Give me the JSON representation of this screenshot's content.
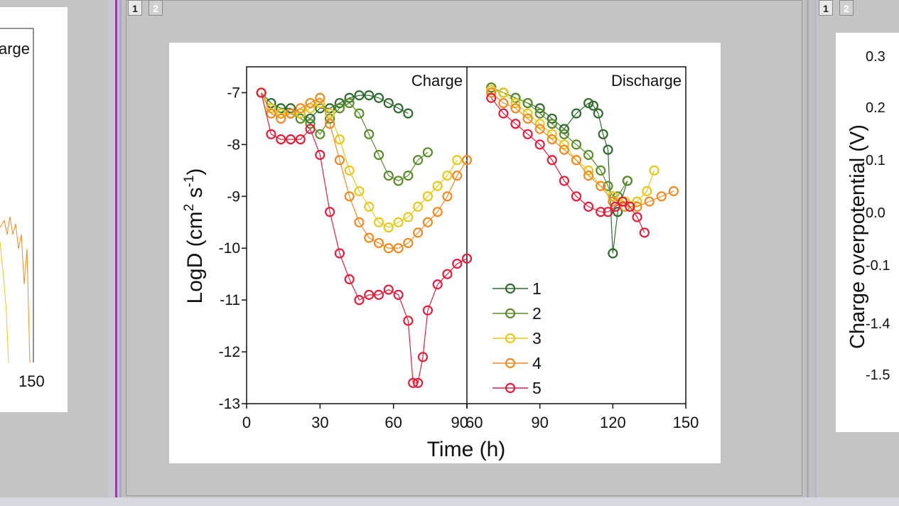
{
  "tabs": {
    "first": "1",
    "second": "2"
  },
  "left_window": {
    "legend_fragment": "arge",
    "tick_label": "150"
  },
  "right_window": {
    "ylabel": "Charge overpotential (V)",
    "ticks": [
      "0.3",
      "0.2",
      "0.1",
      "0.0",
      "-0.1",
      "-1.4",
      "-1.5"
    ]
  },
  "colors": {
    "s1": "#2e6b2e",
    "s2": "#5a8c2a",
    "s3": "#e8c81c",
    "s4": "#f08a24",
    "s5": "#e0203c"
  },
  "chart_data": [
    {
      "type": "scatter",
      "panel": "charge",
      "title": "Charge",
      "xlabel": "Time (h)",
      "ylabel": "LogD (cm2 s-1)",
      "xlim": [
        0,
        90
      ],
      "ylim": [
        -13,
        -6.5
      ],
      "xticks": [
        "0",
        "30",
        "60",
        "90"
      ],
      "yticks": [
        "-7",
        "-8",
        "-9",
        "-10",
        "-11",
        "-12",
        "-13"
      ],
      "series": [
        {
          "name": "1",
          "x": [
            6,
            10,
            14,
            18,
            22,
            26,
            30,
            34,
            38,
            42,
            46,
            50,
            54,
            58,
            62,
            66
          ],
          "y": [
            -7.0,
            -7.2,
            -7.3,
            -7.3,
            -7.4,
            -7.5,
            -7.3,
            -7.3,
            -7.2,
            -7.1,
            -7.05,
            -7.05,
            -7.1,
            -7.2,
            -7.3,
            -7.4
          ]
        },
        {
          "name": "2",
          "x": [
            6,
            10,
            14,
            18,
            22,
            26,
            30,
            34,
            38,
            42,
            46,
            50,
            54,
            58,
            62,
            66,
            70,
            74
          ],
          "y": [
            -7.0,
            -7.3,
            -7.4,
            -7.4,
            -7.5,
            -7.6,
            -7.8,
            -7.5,
            -7.3,
            -7.2,
            -7.4,
            -7.8,
            -8.2,
            -8.6,
            -8.7,
            -8.6,
            -8.3,
            -8.15
          ]
        },
        {
          "name": "3",
          "x": [
            6,
            10,
            14,
            18,
            22,
            26,
            30,
            34,
            38,
            42,
            46,
            50,
            54,
            58,
            62,
            66,
            70,
            74,
            78,
            82,
            86
          ],
          "y": [
            -7.0,
            -7.3,
            -7.4,
            -7.4,
            -7.4,
            -7.3,
            -7.2,
            -7.4,
            -7.9,
            -8.5,
            -8.9,
            -9.2,
            -9.5,
            -9.6,
            -9.5,
            -9.4,
            -9.2,
            -9.0,
            -8.8,
            -8.6,
            -8.3
          ]
        },
        {
          "name": "4",
          "x": [
            6,
            10,
            14,
            18,
            22,
            26,
            30,
            34,
            38,
            42,
            46,
            50,
            54,
            58,
            62,
            66,
            70,
            74,
            78,
            82,
            86,
            90
          ],
          "y": [
            -7.0,
            -7.4,
            -7.5,
            -7.4,
            -7.3,
            -7.2,
            -7.1,
            -7.6,
            -8.3,
            -9.0,
            -9.5,
            -9.8,
            -9.9,
            -10.0,
            -10.0,
            -9.9,
            -9.7,
            -9.5,
            -9.3,
            -9.0,
            -8.6,
            -8.3
          ]
        },
        {
          "name": "5",
          "x": [
            6,
            10,
            14,
            18,
            22,
            26,
            30,
            34,
            38,
            42,
            46,
            50,
            54,
            58,
            62,
            66,
            68,
            70,
            72,
            74,
            78,
            82,
            86,
            90
          ],
          "y": [
            -7.0,
            -7.8,
            -7.9,
            -7.9,
            -7.9,
            -7.7,
            -8.2,
            -9.3,
            -10.1,
            -10.6,
            -11.0,
            -10.9,
            -10.9,
            -10.8,
            -10.9,
            -11.4,
            -12.6,
            -12.6,
            -12.1,
            -11.2,
            -10.7,
            -10.5,
            -10.3,
            -10.2
          ]
        }
      ]
    },
    {
      "type": "scatter",
      "panel": "discharge",
      "title": "Discharge",
      "xlabel": "Time (h)",
      "xlim": [
        60,
        150
      ],
      "ylim": [
        -13,
        -6.5
      ],
      "xticks": [
        "60",
        "90",
        "120",
        "150"
      ],
      "series": [
        {
          "name": "1",
          "x": [
            70,
            75,
            80,
            85,
            90,
            95,
            100,
            105,
            110,
            112,
            114,
            116,
            118,
            120,
            122,
            126
          ],
          "y": [
            -6.9,
            -7.0,
            -7.1,
            -7.2,
            -7.3,
            -7.5,
            -7.7,
            -7.4,
            -7.2,
            -7.25,
            -7.4,
            -7.8,
            -8.1,
            -10.1,
            -9.3,
            -8.7
          ]
        },
        {
          "name": "2",
          "x": [
            70,
            75,
            80,
            85,
            90,
            95,
            100,
            105,
            110,
            115,
            118,
            120,
            122,
            126
          ],
          "y": [
            -6.9,
            -7.0,
            -7.1,
            -7.2,
            -7.4,
            -7.6,
            -7.8,
            -8.0,
            -8.2,
            -8.5,
            -8.8,
            -9.0,
            -9.0,
            -8.7
          ]
        },
        {
          "name": "3",
          "x": [
            70,
            75,
            80,
            85,
            90,
            95,
            100,
            105,
            110,
            115,
            120,
            125,
            130,
            134,
            137
          ],
          "y": [
            -6.95,
            -7.0,
            -7.2,
            -7.4,
            -7.6,
            -7.8,
            -8.0,
            -8.3,
            -8.5,
            -8.8,
            -9.0,
            -9.1,
            -9.1,
            -8.9,
            -8.5
          ]
        },
        {
          "name": "4",
          "x": [
            70,
            75,
            80,
            85,
            90,
            95,
            100,
            105,
            110,
            115,
            120,
            125,
            130,
            135,
            140,
            145
          ],
          "y": [
            -7.0,
            -7.2,
            -7.3,
            -7.5,
            -7.7,
            -7.9,
            -8.1,
            -8.3,
            -8.6,
            -8.8,
            -9.1,
            -9.2,
            -9.2,
            -9.1,
            -9.0,
            -8.9
          ]
        },
        {
          "name": "5",
          "x": [
            70,
            75,
            80,
            85,
            90,
            95,
            100,
            105,
            110,
            115,
            118,
            121,
            124,
            127,
            130,
            133
          ],
          "y": [
            -7.1,
            -7.4,
            -7.6,
            -7.8,
            -8.0,
            -8.3,
            -8.7,
            -9.0,
            -9.2,
            -9.3,
            -9.3,
            -9.2,
            -9.1,
            -9.2,
            -9.4,
            -9.7
          ]
        }
      ],
      "legend": [
        "1",
        "2",
        "3",
        "4",
        "5"
      ]
    }
  ]
}
